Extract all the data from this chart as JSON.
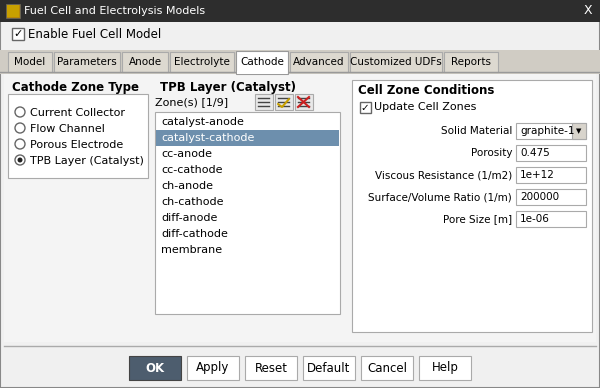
{
  "title": "Fuel Cell and Electrolysis Models",
  "bg_color": "#f0f0f0",
  "tabs": [
    "Model",
    "Parameters",
    "Anode",
    "Electrolyte",
    "Cathode",
    "Advanced",
    "Customized UDFs",
    "Reports"
  ],
  "active_tab": "Cathode",
  "zone_type_label": "Cathode Zone Type",
  "zone_types": [
    "Current Collector",
    "Flow Channel",
    "Porous Electrode",
    "TPB Layer (Catalyst)"
  ],
  "selected_zone_type": "TPB Layer (Catalyst)",
  "tpb_label": "TPB Layer (Catalyst)",
  "zones_label": "Zone(s) [1/9]",
  "zones": [
    "catalyst-anode",
    "catalyst-cathode",
    "cc-anode",
    "cc-cathode",
    "ch-anode",
    "ch-cathode",
    "diff-anode",
    "diff-cathode",
    "membrane"
  ],
  "selected_zone": "catalyst-cathode",
  "selected_zone_color": "#6d8fad",
  "cell_zone_label": "Cell Zone Conditions",
  "solid_material": "graphite-1",
  "porosity": "0.475",
  "viscous_resistance": "1e+12",
  "surface_volume_ratio": "200000",
  "pore_size": "1e-06",
  "buttons": [
    "OK",
    "Apply",
    "Reset",
    "Default",
    "Cancel",
    "Help"
  ],
  "ok_bg": "#4d5d6e",
  "ok_fg": "#ffffff",
  "title_bar_color": "#2d2d2d",
  "tab_bar_color": "#d0ccc4",
  "content_bg": "#f4f4f4",
  "white": "#ffffff",
  "border_color": "#aaaaaa",
  "light_gray": "#e8e8e8"
}
